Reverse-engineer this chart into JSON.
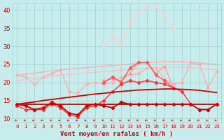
{
  "bg_color": "#c8ecec",
  "grid_color": "#a8d8d8",
  "x_label": "Vent moyen/en rafales ( km/h )",
  "x_ticks": [
    0,
    1,
    2,
    3,
    4,
    5,
    6,
    7,
    8,
    9,
    10,
    11,
    12,
    13,
    14,
    15,
    16,
    17,
    18,
    19,
    20,
    21,
    22,
    23
  ],
  "ylim": [
    9,
    42
  ],
  "xlim": [
    -0.5,
    23.5
  ],
  "yticks": [
    10,
    15,
    20,
    25,
    30,
    35,
    40
  ],
  "lines": [
    {
      "color": "#ffaaaa",
      "linewidth": 0.9,
      "marker": "D",
      "markersize": 1.8,
      "y": [
        22.0,
        21.5,
        19.5,
        21.5,
        22.5,
        23.5,
        17.5,
        17.0,
        19.5,
        20.0,
        19.5,
        20.0,
        21.5,
        22.0,
        22.5,
        24.0,
        24.0,
        21.0,
        19.5,
        20.0,
        25.5,
        25.0,
        18.5,
        23.0
      ]
    },
    {
      "color": "#ffaaaa",
      "linewidth": 0.9,
      "marker": null,
      "markersize": 0,
      "y": [
        22.0,
        22.3,
        22.6,
        22.9,
        23.2,
        23.5,
        23.7,
        23.9,
        24.1,
        24.3,
        24.5,
        24.7,
        24.9,
        25.1,
        25.3,
        25.5,
        25.6,
        25.7,
        25.8,
        25.7,
        25.6,
        25.4,
        25.2,
        25.0
      ]
    },
    {
      "color": "#ffbbbb",
      "linewidth": 0.9,
      "marker": null,
      "markersize": 0,
      "y": [
        20.5,
        20.8,
        21.1,
        21.4,
        21.7,
        22.0,
        22.2,
        22.4,
        22.6,
        22.8,
        23.0,
        23.2,
        23.4,
        23.6,
        23.8,
        24.0,
        24.1,
        24.2,
        24.3,
        24.2,
        24.1,
        23.9,
        23.7,
        23.5
      ]
    },
    {
      "color": "#ffcccc",
      "linewidth": 0.9,
      "marker": "D",
      "markersize": 1.8,
      "y": [
        null,
        null,
        null,
        null,
        null,
        null,
        null,
        null,
        null,
        null,
        30.0,
        32.5,
        30.5,
        36.5,
        39.5,
        41.0,
        41.0,
        38.5,
        35.0,
        null,
        null,
        null,
        null,
        null
      ]
    },
    {
      "color": "#ff9999",
      "linewidth": 0.9,
      "marker": "D",
      "markersize": 1.8,
      "y": [
        null,
        null,
        null,
        null,
        null,
        null,
        null,
        null,
        null,
        null,
        20.5,
        21.0,
        20.5,
        22.5,
        25.5,
        25.5,
        22.5,
        24.5,
        18.5,
        null,
        null,
        null,
        null,
        null
      ]
    },
    {
      "color": "#ff5555",
      "linewidth": 1.1,
      "marker": "D",
      "markersize": 2.2,
      "y": [
        null,
        null,
        null,
        null,
        null,
        null,
        null,
        null,
        null,
        null,
        20.0,
        21.5,
        20.0,
        24.0,
        25.5,
        25.5,
        22.0,
        20.5,
        18.5,
        null,
        null,
        null,
        null,
        null
      ]
    },
    {
      "color": "#ff3333",
      "linewidth": 1.0,
      "marker": "D",
      "markersize": 2.2,
      "y": [
        13.5,
        12.5,
        12.5,
        12.5,
        14.0,
        13.0,
        11.0,
        10.5,
        13.0,
        13.5,
        15.0,
        17.5,
        19.5,
        20.5,
        20.0,
        20.5,
        20.0,
        19.5,
        18.5,
        17.5,
        14.0,
        12.5,
        12.5,
        14.0
      ]
    },
    {
      "color": "#cc0000",
      "linewidth": 1.3,
      "marker": "D",
      "markersize": 2.2,
      "y": [
        14.0,
        13.5,
        12.5,
        13.0,
        14.5,
        13.5,
        11.5,
        11.0,
        13.5,
        14.0,
        13.5,
        13.0,
        14.5,
        14.0,
        14.0,
        14.0,
        14.0,
        14.0,
        14.0,
        14.0,
        14.0,
        12.5,
        12.5,
        14.0
      ]
    },
    {
      "color": "#cc0000",
      "linewidth": 1.3,
      "marker": null,
      "markersize": 0,
      "y": [
        14.0,
        14.0,
        14.0,
        14.0,
        14.0,
        14.0,
        14.0,
        14.0,
        14.0,
        14.0,
        14.0,
        14.0,
        14.0,
        14.0,
        14.0,
        14.0,
        14.0,
        14.0,
        14.0,
        14.0,
        14.0,
        14.0,
        14.0,
        14.0
      ]
    },
    {
      "color": "#cc0000",
      "linewidth": 1.3,
      "marker": null,
      "markersize": 0,
      "y": [
        14.0,
        14.3,
        14.6,
        15.0,
        15.3,
        15.6,
        15.9,
        16.2,
        16.5,
        16.8,
        17.0,
        17.3,
        17.5,
        17.7,
        17.9,
        18.0,
        18.1,
        18.2,
        18.2,
        18.1,
        18.0,
        17.8,
        17.5,
        17.2
      ]
    }
  ],
  "arrow_color": "#cc2222",
  "tick_label_color": "#cc0000",
  "axis_label_color": "#cc0000",
  "tick_fontsize": 5,
  "label_fontsize": 6.5
}
